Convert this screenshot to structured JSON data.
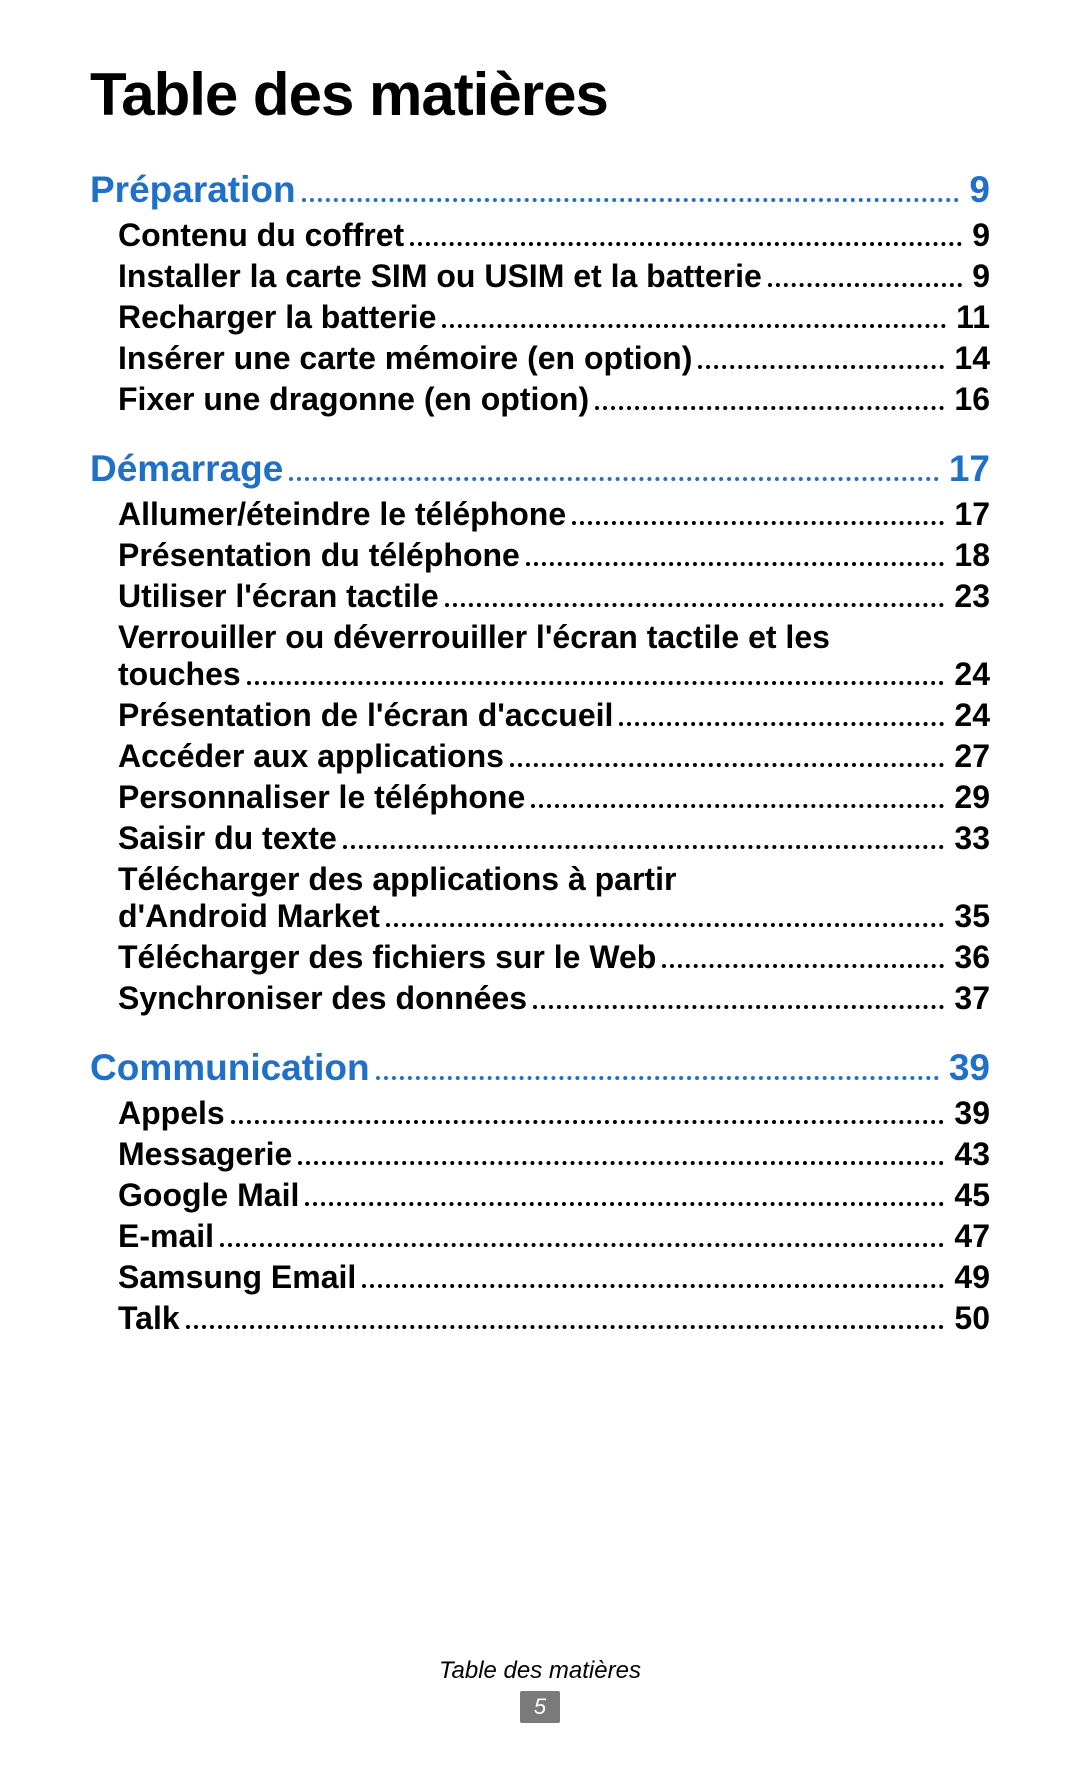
{
  "title": "Table des matières",
  "accent_color": "#2070c8",
  "text_color": "#000000",
  "footer": {
    "label": "Table des matières",
    "page_number": "5",
    "badge_bg": "#7a7a7a",
    "badge_fg": "#ffffff"
  },
  "sections": [
    {
      "title": "Préparation",
      "page": "9",
      "entries": [
        {
          "label": "Contenu du coffret",
          "page": "9"
        },
        {
          "label": "Installer la carte SIM ou USIM et la batterie",
          "page": "9"
        },
        {
          "label": "Recharger la batterie",
          "page": "11"
        },
        {
          "label": "Insérer une carte mémoire (en option)",
          "page": "14"
        },
        {
          "label": "Fixer une dragonne (en option)",
          "page": "16"
        }
      ]
    },
    {
      "title": "Démarrage",
      "page": "17",
      "entries": [
        {
          "label": "Allumer/éteindre le téléphone",
          "page": "17"
        },
        {
          "label": "Présentation du téléphone",
          "page": "18"
        },
        {
          "label": "Utiliser l'écran tactile",
          "page": "23"
        },
        {
          "label_line1": "Verrouiller ou déverrouiller l'écran tactile et les",
          "label_line2": "touches",
          "page": "24",
          "multiline": true
        },
        {
          "label": "Présentation de l'écran d'accueil",
          "page": "24"
        },
        {
          "label": "Accéder aux applications",
          "page": "27"
        },
        {
          "label": "Personnaliser le téléphone",
          "page": "29"
        },
        {
          "label": "Saisir du texte",
          "page": "33"
        },
        {
          "label_line1": "Télécharger des applications à partir",
          "label_line2": "d'Android Market",
          "page": "35",
          "multiline": true
        },
        {
          "label": "Télécharger des fichiers sur le Web",
          "page": "36"
        },
        {
          "label": "Synchroniser des données",
          "page": "37"
        }
      ]
    },
    {
      "title": "Communication",
      "page": "39",
      "entries": [
        {
          "label": "Appels",
          "page": "39"
        },
        {
          "label": "Messagerie",
          "page": "43"
        },
        {
          "label": "Google Mail",
          "page": "45"
        },
        {
          "label": "E-mail",
          "page": "47"
        },
        {
          "label": "Samsung Email",
          "page": "49"
        },
        {
          "label": "Talk",
          "page": "50"
        }
      ]
    }
  ]
}
